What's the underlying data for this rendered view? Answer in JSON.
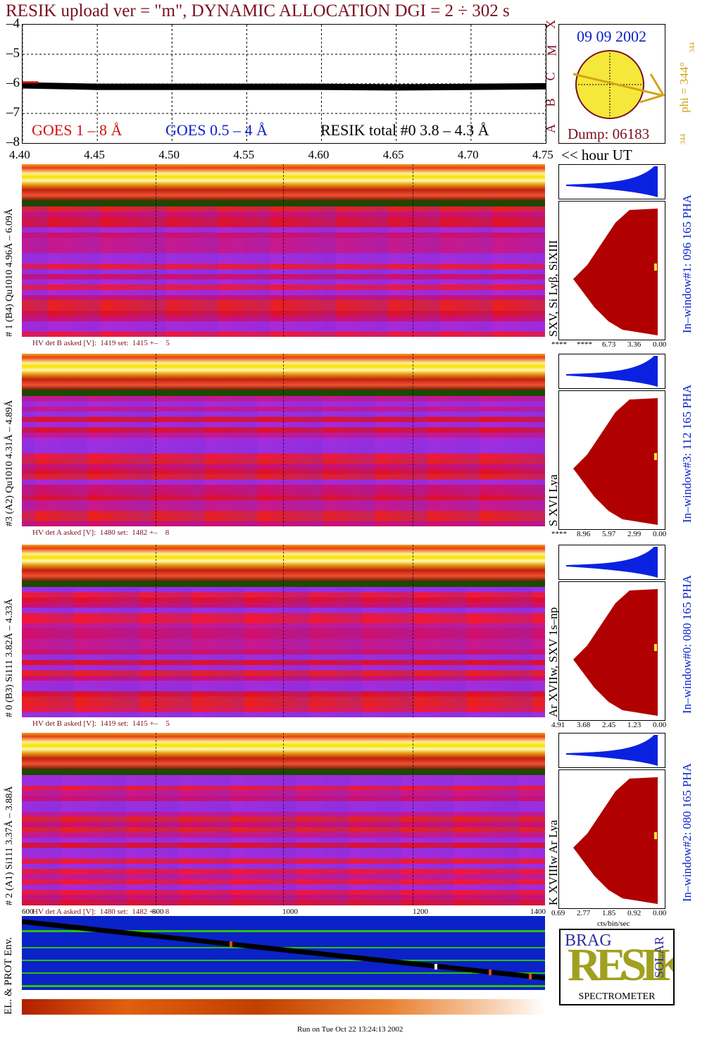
{
  "header": {
    "title": "RESIK upload ver = \"m\", DYNAMIC ALLOCATION  DGI =   2 ÷ 302 s",
    "run_info": "Run on Tue Oct 22 13:24:13 2002"
  },
  "colors": {
    "maroon": "#7a1020",
    "blue": "#0a22c8",
    "yellow": "#f5e83a",
    "red": "#b00000",
    "gold": "#d4a21a"
  },
  "sun_panel": {
    "date": "09 09 2002",
    "dump": "Dump: 06183",
    "phi_label": "phi = 344°",
    "phi_value": "344",
    "phi_value_bottom": "344",
    "goes_classes": [
      "X",
      "M",
      "C",
      "B",
      "A"
    ]
  },
  "lightcurve": {
    "legend_goes1": "GOES 1 – 8 Å",
    "legend_goes05": "GOES 0.5 – 4 Å",
    "legend_resik": "RESIK total #0  3.8 – 4.3 Å",
    "x_unit": "<< hour UT"
  },
  "channels": [
    {
      "left_label": "# 1 (B4) Qu1010 4.96Å – 6.09Å",
      "right_label": "SXV, Si Lyβ, SiXIII",
      "window_label": "In–window#1:  096 165 PHA",
      "hv": "HV det B asked [V]:  1419 set:  1415 +–    5",
      "pha_ticks": [
        "****",
        "****",
        "6.73",
        "3.36",
        "0.00"
      ]
    },
    {
      "left_label": "#3 (A2) Qu1010  4.31Å – 4.89Å",
      "right_label": "S XVI Lya",
      "window_label": "In–window#3:  112 165 PHA",
      "hv": "HV det A asked [V]:  1480 set:  1482 +–    8",
      "pha_ticks": [
        "****",
        "8.96",
        "5.97",
        "2.99",
        "0.00"
      ]
    },
    {
      "left_label": "# 0 (B3) Si111  3.82Å – 4.33Å",
      "right_label": "Ar XVIIw,  SXV 1s–np",
      "window_label": "In–window#0:  080 165 PHA",
      "hv": "HV det B asked [V]:  1419 set:  1415 +–    5",
      "pha_ticks": [
        "4.91",
        "3.68",
        "2.45",
        "1.23",
        "0.00"
      ]
    },
    {
      "left_label": "# 2 (A1) Si111  3.37Å – 3.88Å",
      "right_label": "K XVIIIw  Ar Lya",
      "window_label": "In–window#2:  080 165 PHA",
      "hv": "HV det A asked [V]:  1480 set:  1482 +–    8",
      "pha_ticks": [
        "0.69",
        "2.77",
        "1.85",
        "0.92",
        "0.00"
      ]
    }
  ],
  "pha_xlabel": "cts/bin/sec",
  "env_panel": {
    "label": "EL. & PROT Env.",
    "ticks": [
      "600",
      "800",
      "1000",
      "1200",
      "1400"
    ]
  },
  "logo": {
    "text": "SPECTROMETER",
    "letters": "RESIK",
    "tag1": "BRAG",
    "tag2": "SOLAR"
  },
  "chart_data": [
    {
      "type": "line",
      "title": "",
      "xlabel": "",
      "ylabel": "",
      "x_ticks": [
        "4.40",
        "4.45",
        "4.50",
        "4.55",
        "4.60",
        "4.65",
        "4.70",
        "4.75"
      ],
      "y_ticks": [
        "–4",
        "–5",
        "–6",
        "–7",
        "–8"
      ],
      "xlim": [
        4.4,
        4.75
      ],
      "ylim": [
        -8,
        -4
      ],
      "grid": true,
      "series": [
        {
          "name": "RESIK total #0  3.8 – 4.3 Å",
          "x": [
            4.4,
            4.45,
            4.5,
            4.55,
            4.6,
            4.65,
            4.7,
            4.75
          ],
          "values": [
            -6.05,
            -6.1,
            -6.1,
            -6.1,
            -6.1,
            -6.12,
            -6.1,
            -6.08
          ]
        },
        {
          "name": "GOES 1 – 8 Å",
          "x": [
            4.4,
            4.41
          ],
          "values": [
            -5.95,
            -5.95
          ]
        }
      ]
    }
  ]
}
